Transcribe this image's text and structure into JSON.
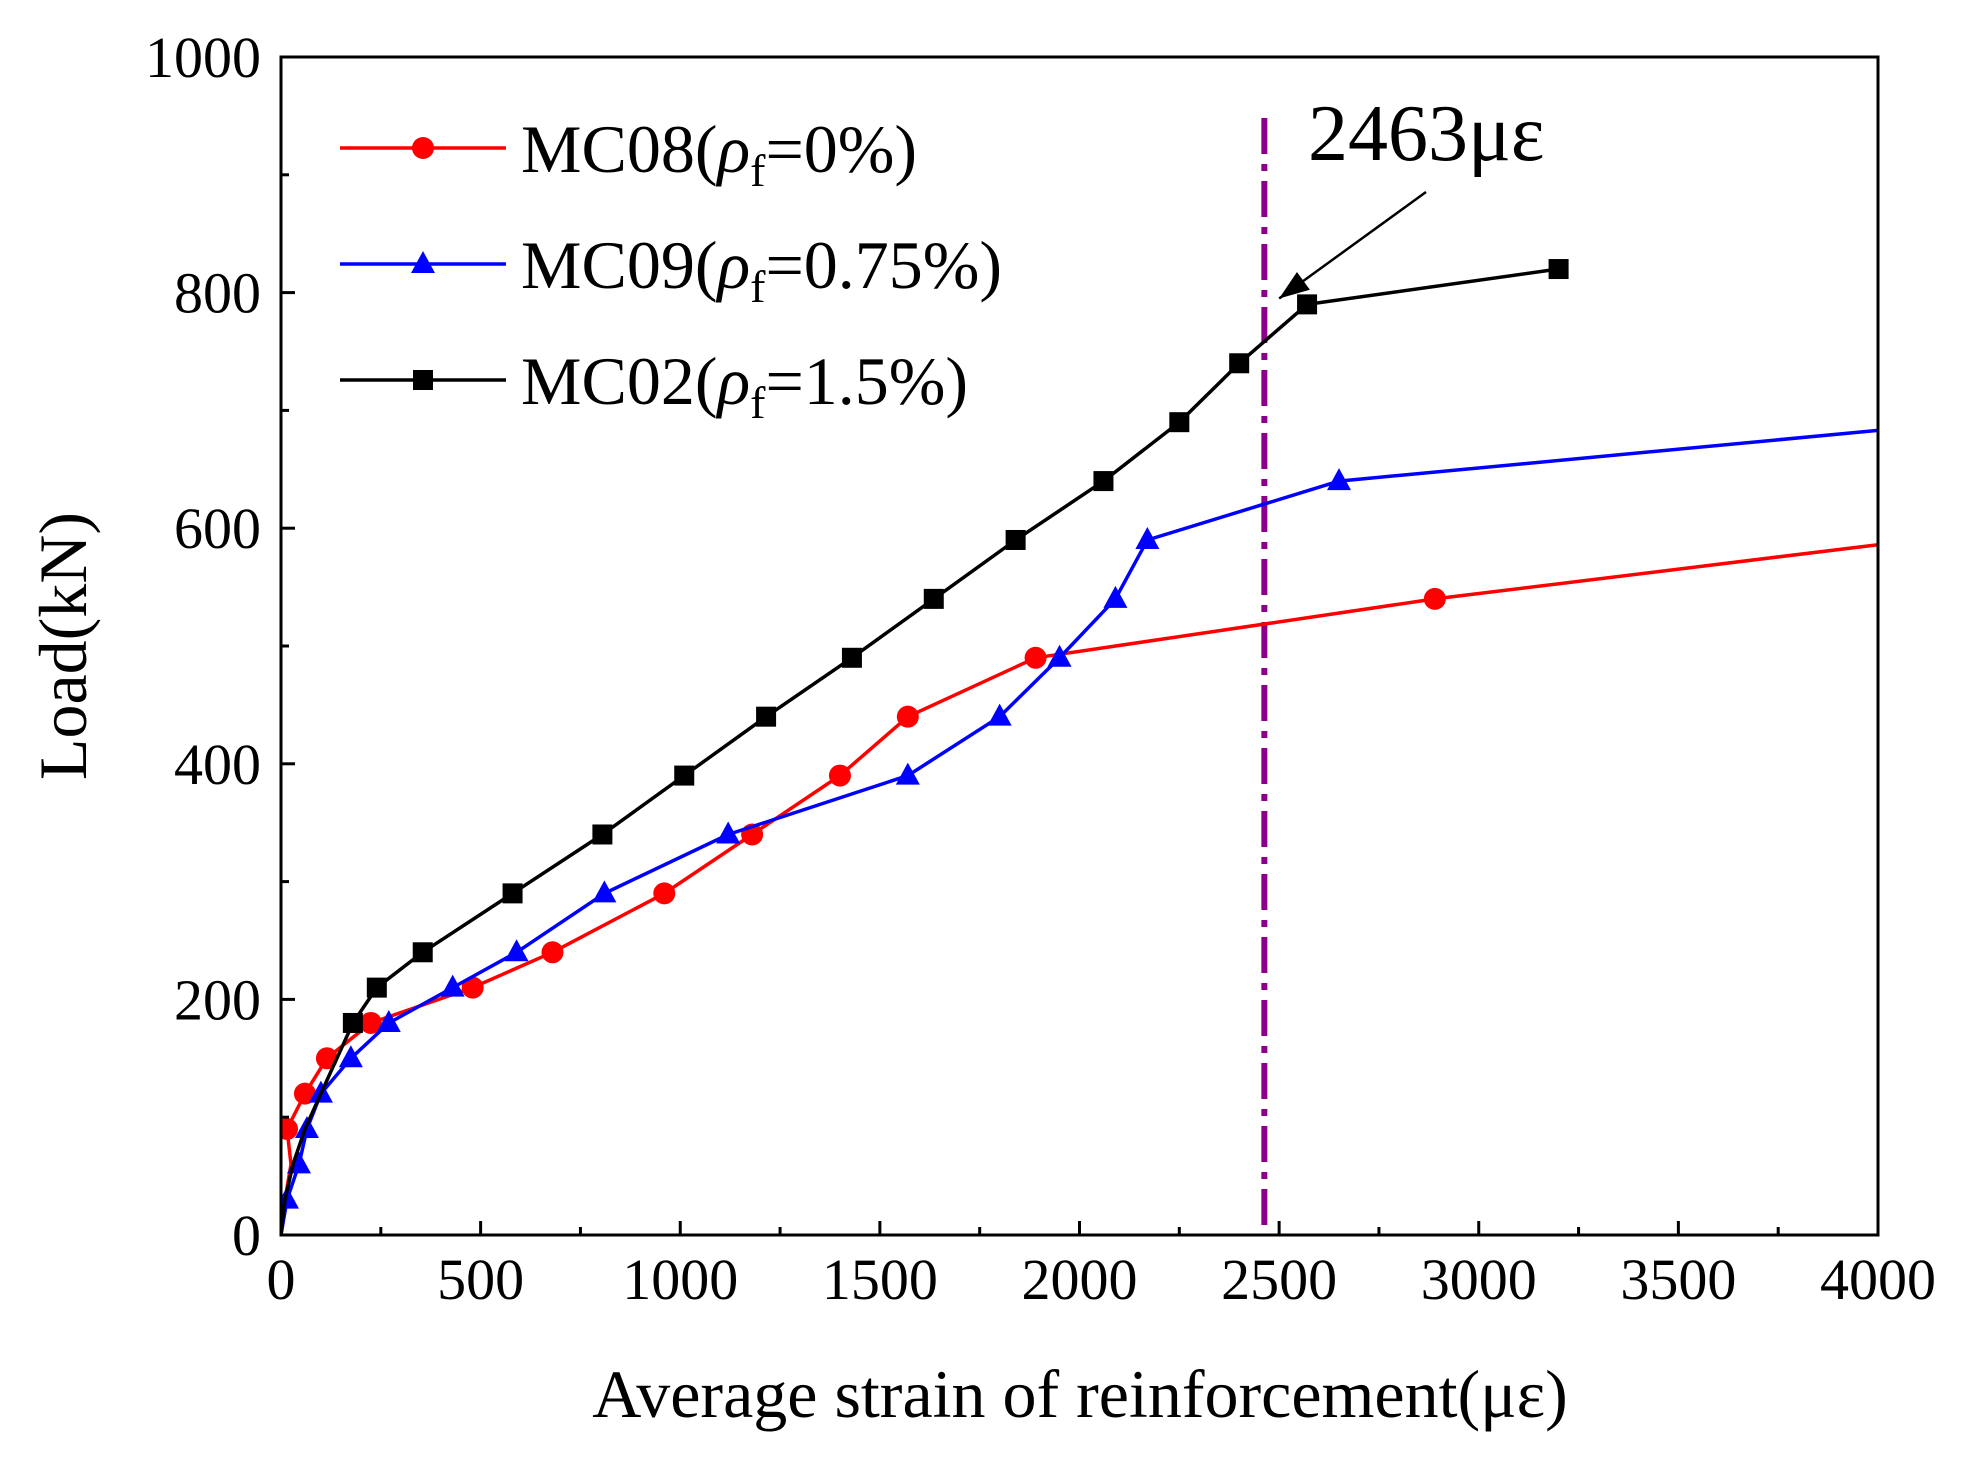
{
  "chart_data": {
    "type": "line",
    "title": "",
    "xlabel": "Average strain of reinforcement(με)",
    "ylabel": "Load(kN)",
    "xlim": [
      0,
      4000
    ],
    "ylim": [
      0,
      1000
    ],
    "x_ticks": [
      0,
      500,
      1000,
      1500,
      2000,
      2500,
      3000,
      3500,
      4000
    ],
    "y_ticks": [
      0,
      200,
      400,
      600,
      800,
      1000
    ],
    "grid": false,
    "legend_position": "top-left",
    "series": [
      {
        "name": "MC08",
        "legend_prefix": "MC08(",
        "legend_rho": "ρ",
        "legend_sub": "f",
        "legend_suffix": "=0%)",
        "color": "#ff0000",
        "marker": "circle",
        "points": [
          [
            0,
            0
          ],
          [
            10,
            30
          ],
          [
            25,
            60
          ],
          [
            15,
            90
          ],
          [
            60,
            120
          ],
          [
            115,
            150
          ],
          [
            225,
            180
          ],
          [
            480,
            210
          ],
          [
            680,
            240
          ],
          [
            960,
            290
          ],
          [
            1180,
            340
          ],
          [
            1400,
            390
          ],
          [
            1570,
            440
          ],
          [
            1890,
            490
          ],
          [
            2890,
            540
          ],
          [
            4000,
            586
          ]
        ],
        "marker_indices": [
          3,
          4,
          5,
          6,
          7,
          8,
          9,
          10,
          11,
          12,
          13,
          14
        ]
      },
      {
        "name": "MC09",
        "legend_prefix": "MC09(",
        "legend_rho": "ρ",
        "legend_sub": "f",
        "legend_suffix": "=0.75%)",
        "color": "#0000ff",
        "marker": "triangle",
        "points": [
          [
            0,
            0
          ],
          [
            15,
            30
          ],
          [
            45,
            60
          ],
          [
            65,
            90
          ],
          [
            100,
            120
          ],
          [
            175,
            150
          ],
          [
            270,
            180
          ],
          [
            430,
            210
          ],
          [
            590,
            240
          ],
          [
            810,
            290
          ],
          [
            1120,
            340
          ],
          [
            1570,
            390
          ],
          [
            1800,
            440
          ],
          [
            1950,
            490
          ],
          [
            2090,
            540
          ],
          [
            2170,
            590
          ],
          [
            2650,
            640
          ],
          [
            4000,
            683
          ]
        ],
        "marker_indices": [
          1,
          2,
          3,
          4,
          5,
          6,
          7,
          8,
          9,
          10,
          11,
          12,
          13,
          14,
          15,
          16
        ]
      },
      {
        "name": "MC02",
        "legend_prefix": "MC02(",
        "legend_rho": "ρ",
        "legend_sub": "f",
        "legend_suffix": "=1.5%)",
        "color": "#000000",
        "marker": "square",
        "points": [
          [
            0,
            0
          ],
          [
            10,
            30
          ],
          [
            30,
            60
          ],
          [
            60,
            90
          ],
          [
            100,
            120
          ],
          [
            140,
            150
          ],
          [
            180,
            180
          ],
          [
            240,
            210
          ],
          [
            355,
            240
          ],
          [
            580,
            290
          ],
          [
            805,
            340
          ],
          [
            1010,
            390
          ],
          [
            1215,
            440
          ],
          [
            1430,
            490
          ],
          [
            1635,
            540
          ],
          [
            1840,
            590
          ],
          [
            2060,
            640
          ],
          [
            2250,
            690
          ],
          [
            2400,
            740
          ],
          [
            2570,
            790
          ],
          [
            3200,
            820
          ]
        ],
        "marker_indices": [
          6,
          7,
          8,
          9,
          10,
          11,
          12,
          13,
          14,
          15,
          16,
          17,
          18,
          19,
          20
        ]
      }
    ],
    "reference_line": {
      "x": 2463,
      "style": "dash-dot",
      "color": "#8b008b"
    },
    "annotation": {
      "text": "2463με",
      "arrow_to": [
        2500,
        795
      ]
    }
  }
}
